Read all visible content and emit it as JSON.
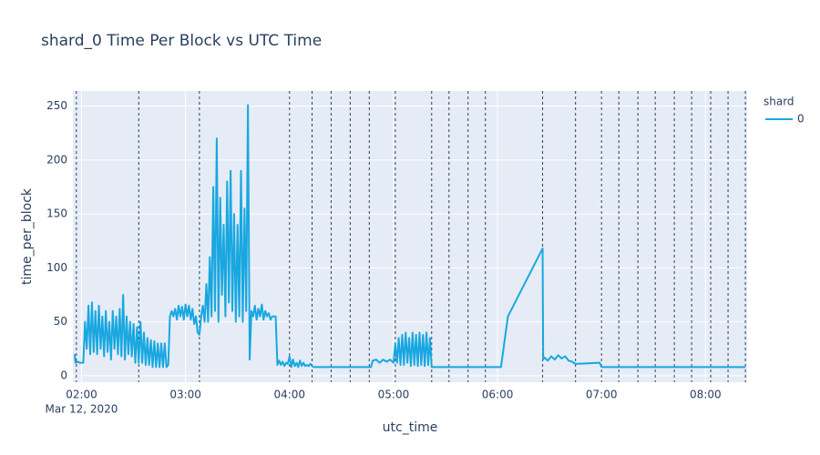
{
  "chart_data": {
    "type": "line",
    "title": "shard_0 Time Per Block vs UTC Time",
    "x_label": "utc_time",
    "y_label": "time_per_block",
    "legend_title": "shard",
    "x": [
      "2020-03-12 01:56",
      "2020-03-12 01:56:30",
      "2020-03-12 01:58",
      "2020-03-12 01:59",
      "2020-03-12 02:00",
      "2020-03-12 02:01",
      "2020-03-12 02:02",
      "2020-03-12 02:03",
      "2020-03-12 02:04",
      "2020-03-12 02:05",
      "2020-03-12 02:06",
      "2020-03-12 02:07",
      "2020-03-12 02:08",
      "2020-03-12 02:09",
      "2020-03-12 02:10",
      "2020-03-12 02:11",
      "2020-03-12 02:12",
      "2020-03-12 02:13",
      "2020-03-12 02:14",
      "2020-03-12 02:15",
      "2020-03-12 02:16",
      "2020-03-12 02:17",
      "2020-03-12 02:18",
      "2020-03-12 02:19",
      "2020-03-12 02:20",
      "2020-03-12 02:21",
      "2020-03-12 02:22",
      "2020-03-12 02:23",
      "2020-03-12 02:24",
      "2020-03-12 02:25",
      "2020-03-12 02:26",
      "2020-03-12 02:27",
      "2020-03-12 02:28",
      "2020-03-12 02:29",
      "2020-03-12 02:30",
      "2020-03-12 02:31",
      "2020-03-12 02:32",
      "2020-03-12 02:33",
      "2020-03-12 02:34",
      "2020-03-12 02:35",
      "2020-03-12 02:36",
      "2020-03-12 02:37",
      "2020-03-12 02:38",
      "2020-03-12 02:39",
      "2020-03-12 02:40",
      "2020-03-12 02:41",
      "2020-03-12 02:42",
      "2020-03-12 02:43",
      "2020-03-12 02:44",
      "2020-03-12 02:45",
      "2020-03-12 02:46",
      "2020-03-12 02:47",
      "2020-03-12 02:48",
      "2020-03-12 02:49",
      "2020-03-12 02:50",
      "2020-03-12 02:51",
      "2020-03-12 02:52",
      "2020-03-12 02:53",
      "2020-03-12 02:54",
      "2020-03-12 02:55",
      "2020-03-12 02:56",
      "2020-03-12 02:57",
      "2020-03-12 02:58",
      "2020-03-12 02:59",
      "2020-03-12 03:00",
      "2020-03-12 03:01",
      "2020-03-12 03:02",
      "2020-03-12 03:03",
      "2020-03-12 03:04",
      "2020-03-12 03:05",
      "2020-03-12 03:06",
      "2020-03-12 03:07",
      "2020-03-12 03:08",
      "2020-03-12 03:09",
      "2020-03-12 03:10",
      "2020-03-12 03:11",
      "2020-03-12 03:12",
      "2020-03-12 03:13",
      "2020-03-12 03:14",
      "2020-03-12 03:15",
      "2020-03-12 03:16",
      "2020-03-12 03:17",
      "2020-03-12 03:18",
      "2020-03-12 03:19",
      "2020-03-12 03:20",
      "2020-03-12 03:21",
      "2020-03-12 03:22",
      "2020-03-12 03:23",
      "2020-03-12 03:24",
      "2020-03-12 03:25",
      "2020-03-12 03:26",
      "2020-03-12 03:27",
      "2020-03-12 03:28",
      "2020-03-12 03:29",
      "2020-03-12 03:30",
      "2020-03-12 03:31",
      "2020-03-12 03:32",
      "2020-03-12 03:33",
      "2020-03-12 03:34",
      "2020-03-12 03:35",
      "2020-03-12 03:36",
      "2020-03-12 03:37",
      "2020-03-12 03:38",
      "2020-03-12 03:39",
      "2020-03-12 03:40",
      "2020-03-12 03:41",
      "2020-03-12 03:42",
      "2020-03-12 03:43",
      "2020-03-12 03:44",
      "2020-03-12 03:45",
      "2020-03-12 03:46",
      "2020-03-12 03:47",
      "2020-03-12 03:48",
      "2020-03-12 03:49",
      "2020-03-12 03:50",
      "2020-03-12 03:51",
      "2020-03-12 03:52",
      "2020-03-12 03:53",
      "2020-03-12 03:54",
      "2020-03-12 03:55",
      "2020-03-12 03:56",
      "2020-03-12 03:57",
      "2020-03-12 03:58",
      "2020-03-12 03:59",
      "2020-03-12 04:00",
      "2020-03-12 04:01",
      "2020-03-12 04:02",
      "2020-03-12 04:03",
      "2020-03-12 04:04",
      "2020-03-12 04:05",
      "2020-03-12 04:06",
      "2020-03-12 04:07",
      "2020-03-12 04:08",
      "2020-03-12 04:09",
      "2020-03-12 04:10",
      "2020-03-12 04:11",
      "2020-03-12 04:12",
      "2020-03-12 04:13",
      "2020-03-12 04:14",
      "2020-03-12 04:47",
      "2020-03-12 04:48",
      "2020-03-12 04:50",
      "2020-03-12 04:52",
      "2020-03-12 04:54",
      "2020-03-12 04:56",
      "2020-03-12 04:58",
      "2020-03-12 05:00",
      "2020-03-12 05:01",
      "2020-03-12 05:02",
      "2020-03-12 05:03",
      "2020-03-12 05:04",
      "2020-03-12 05:05",
      "2020-03-12 05:06",
      "2020-03-12 05:07",
      "2020-03-12 05:08",
      "2020-03-12 05:09",
      "2020-03-12 05:10",
      "2020-03-12 05:11",
      "2020-03-12 05:12",
      "2020-03-12 05:13",
      "2020-03-12 05:14",
      "2020-03-12 05:15",
      "2020-03-12 05:16",
      "2020-03-12 05:17",
      "2020-03-12 05:18",
      "2020-03-12 05:19",
      "2020-03-12 05:20",
      "2020-03-12 05:21",
      "2020-03-12 05:22",
      "2020-03-12 06:02",
      "2020-03-12 06:06",
      "2020-03-12 06:26",
      "2020-03-12 06:26:20",
      "2020-03-12 06:27",
      "2020-03-12 06:29",
      "2020-03-12 06:31",
      "2020-03-12 06:33",
      "2020-03-12 06:35",
      "2020-03-12 06:37",
      "2020-03-12 06:39",
      "2020-03-12 06:41",
      "2020-03-12 06:43",
      "2020-03-12 06:45",
      "2020-03-12 06:59",
      "2020-03-12 07:00",
      "2020-03-12 08:23"
    ],
    "series": [
      {
        "name": "0",
        "color": "#19a7e0",
        "values": [
          20,
          12,
          13,
          12,
          12,
          12,
          50,
          25,
          65,
          20,
          68,
          22,
          60,
          20,
          65,
          25,
          55,
          18,
          60,
          22,
          50,
          15,
          60,
          25,
          55,
          20,
          62,
          18,
          75,
          15,
          55,
          20,
          50,
          18,
          48,
          12,
          45,
          12,
          50,
          12,
          40,
          10,
          35,
          10,
          33,
          8,
          32,
          8,
          30,
          8,
          30,
          8,
          30,
          8,
          10,
          55,
          60,
          55,
          62,
          52,
          65,
          55,
          64,
          52,
          66,
          55,
          65,
          52,
          62,
          48,
          55,
          40,
          38,
          55,
          65,
          50,
          85,
          50,
          110,
          55,
          175,
          60,
          220,
          50,
          165,
          75,
          140,
          55,
          180,
          68,
          190,
          60,
          150,
          50,
          140,
          55,
          190,
          50,
          155,
          60,
          251,
          15,
          60,
          55,
          65,
          52,
          62,
          55,
          66,
          52,
          60,
          55,
          58,
          52,
          55,
          55,
          55,
          10,
          14,
          10,
          13,
          9,
          12,
          11,
          18,
          8,
          15,
          9,
          12,
          8,
          14,
          9,
          12,
          9,
          10,
          9,
          11,
          9,
          8,
          8,
          14,
          15,
          12,
          15,
          13,
          15,
          12,
          30,
          12,
          35,
          10,
          38,
          10,
          40,
          12,
          35,
          9,
          40,
          10,
          38,
          9,
          40,
          10,
          38,
          9,
          40,
          10,
          35,
          8,
          8,
          55,
          118,
          15,
          17,
          14,
          18,
          15,
          19,
          16,
          18,
          14,
          13,
          11,
          12,
          8,
          8
        ]
      }
    ],
    "vlines": [
      "2020-03-12 01:57",
      "2020-03-12 02:33",
      "2020-03-12 03:08",
      "2020-03-12 04:00",
      "2020-03-12 04:13",
      "2020-03-12 04:24",
      "2020-03-12 04:35",
      "2020-03-12 04:46",
      "2020-03-12 05:01",
      "2020-03-12 05:22",
      "2020-03-12 05:32",
      "2020-03-12 05:43",
      "2020-03-12 05:53",
      "2020-03-12 06:26",
      "2020-03-12 06:45",
      "2020-03-12 07:00",
      "2020-03-12 07:10",
      "2020-03-12 07:21",
      "2020-03-12 07:31",
      "2020-03-12 07:42",
      "2020-03-12 07:52",
      "2020-03-12 08:03",
      "2020-03-12 08:13",
      "2020-03-12 08:23"
    ],
    "xlim": [
      "2020-03-12 01:55",
      "2020-03-12 08:24"
    ],
    "xticks": [
      {
        "value": "2020-03-12 02:00",
        "label": "02:00"
      },
      {
        "value": "2020-03-12 03:00",
        "label": "03:00"
      },
      {
        "value": "2020-03-12 04:00",
        "label": "04:00"
      },
      {
        "value": "2020-03-12 05:00",
        "label": "05:00"
      },
      {
        "value": "2020-03-12 06:00",
        "label": "06:00"
      },
      {
        "value": "2020-03-12 07:00",
        "label": "07:00"
      },
      {
        "value": "2020-03-12 08:00",
        "label": "08:00"
      }
    ],
    "xtick_date": "Mar 12, 2020",
    "ylim": [
      -6,
      264
    ],
    "yticks": [
      0,
      50,
      100,
      150,
      200,
      250
    ],
    "grid": true
  }
}
